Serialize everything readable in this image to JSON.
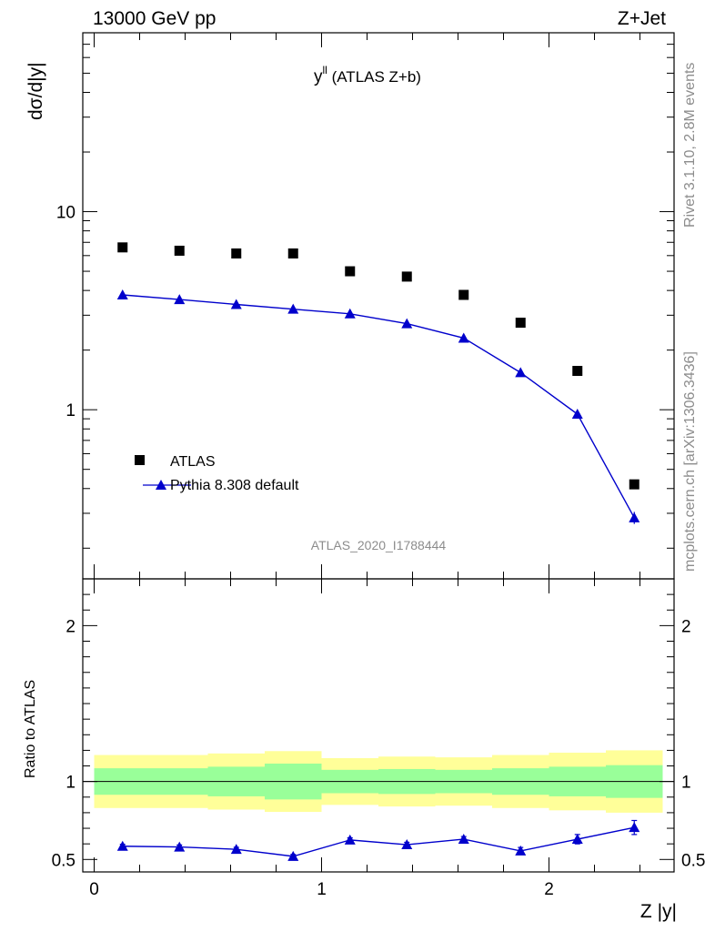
{
  "header": {
    "left": "13000 GeV pp",
    "right": "Z+Jet"
  },
  "side_labels": {
    "top": "Rivet 3.1.10,  2.8M events",
    "bottom": "mcplots.cern.ch [arXiv:1306.3436]"
  },
  "colors": {
    "data": "#000000",
    "mc": "#0000cc",
    "band_inner": "#99ff99",
    "band_outer": "#ffff99"
  },
  "chart_data": [
    {
      "type": "scatter",
      "title": "y",
      "title_sup": "ll",
      "title_suffix": " (ATLAS Z+b)",
      "ylabel": "dσ/d|y|",
      "yscale": "log",
      "ylim": [
        0.14,
        80
      ],
      "xlim": [
        -0.05,
        2.55
      ],
      "yticks": [
        1,
        10
      ],
      "ytick_labels": [
        "1",
        "10"
      ],
      "watermark": "ATLAS_2020_I1788444",
      "legend_position": "bottom-left",
      "series": [
        {
          "name": "ATLAS",
          "marker": "square",
          "x": [
            0.125,
            0.375,
            0.625,
            0.875,
            1.125,
            1.375,
            1.625,
            1.875,
            2.125,
            2.375
          ],
          "y": [
            6.6,
            6.35,
            6.15,
            6.15,
            5.0,
            4.7,
            3.8,
            2.75,
            1.57,
            0.42
          ]
        },
        {
          "name": "Pythia 8.308 default",
          "marker": "triangle",
          "x": [
            0.125,
            0.375,
            0.625,
            0.875,
            1.125,
            1.375,
            1.625,
            1.875,
            2.125,
            2.375
          ],
          "y": [
            3.8,
            3.6,
            3.4,
            3.22,
            3.05,
            2.72,
            2.3,
            1.54,
            0.95,
            0.285
          ],
          "yerr": [
            0.03,
            0.03,
            0.03,
            0.03,
            0.03,
            0.03,
            0.03,
            0.03,
            0.03,
            0.02
          ]
        }
      ]
    },
    {
      "type": "line",
      "ylabel": "Ratio to ATLAS",
      "xlabel": "Z |y|",
      "xlim": [
        -0.05,
        2.55
      ],
      "ylim": [
        0.42,
        2.3
      ],
      "xticks": [
        0,
        1,
        2
      ],
      "xtick_labels": [
        "0",
        "1",
        "2"
      ],
      "yticks": [
        0.5,
        1,
        2
      ],
      "ytick_labels": [
        "0.5",
        "1",
        "2"
      ],
      "reference_line": 1,
      "bands": {
        "bins": [
          [
            0,
            0.25
          ],
          [
            0.25,
            0.5
          ],
          [
            0.5,
            0.75
          ],
          [
            0.75,
            1.0
          ],
          [
            1.0,
            1.25
          ],
          [
            1.25,
            1.5
          ],
          [
            1.5,
            1.75
          ],
          [
            1.75,
            2.0
          ],
          [
            2.0,
            2.25
          ],
          [
            2.25,
            2.5
          ]
        ],
        "inner_low": [
          0.915,
          0.915,
          0.905,
          0.885,
          0.925,
          0.92,
          0.925,
          0.915,
          0.905,
          0.895
        ],
        "inner_high": [
          1.085,
          1.085,
          1.095,
          1.115,
          1.075,
          1.08,
          1.075,
          1.085,
          1.095,
          1.105
        ],
        "outer_low": [
          0.83,
          0.83,
          0.82,
          0.805,
          0.85,
          0.84,
          0.845,
          0.83,
          0.815,
          0.8
        ],
        "outer_high": [
          1.17,
          1.17,
          1.18,
          1.195,
          1.15,
          1.16,
          1.155,
          1.17,
          1.185,
          1.2
        ]
      },
      "series": [
        {
          "name": "Pythia 8.308 default",
          "x": [
            0.125,
            0.375,
            0.625,
            0.875,
            1.125,
            1.375,
            1.625,
            1.875,
            2.125,
            2.375
          ],
          "y": [
            0.585,
            0.58,
            0.565,
            0.52,
            0.625,
            0.595,
            0.63,
            0.555,
            0.63,
            0.705
          ],
          "yerr": [
            0.012,
            0.013,
            0.013,
            0.012,
            0.014,
            0.015,
            0.017,
            0.022,
            0.03,
            0.045
          ]
        }
      ]
    }
  ]
}
